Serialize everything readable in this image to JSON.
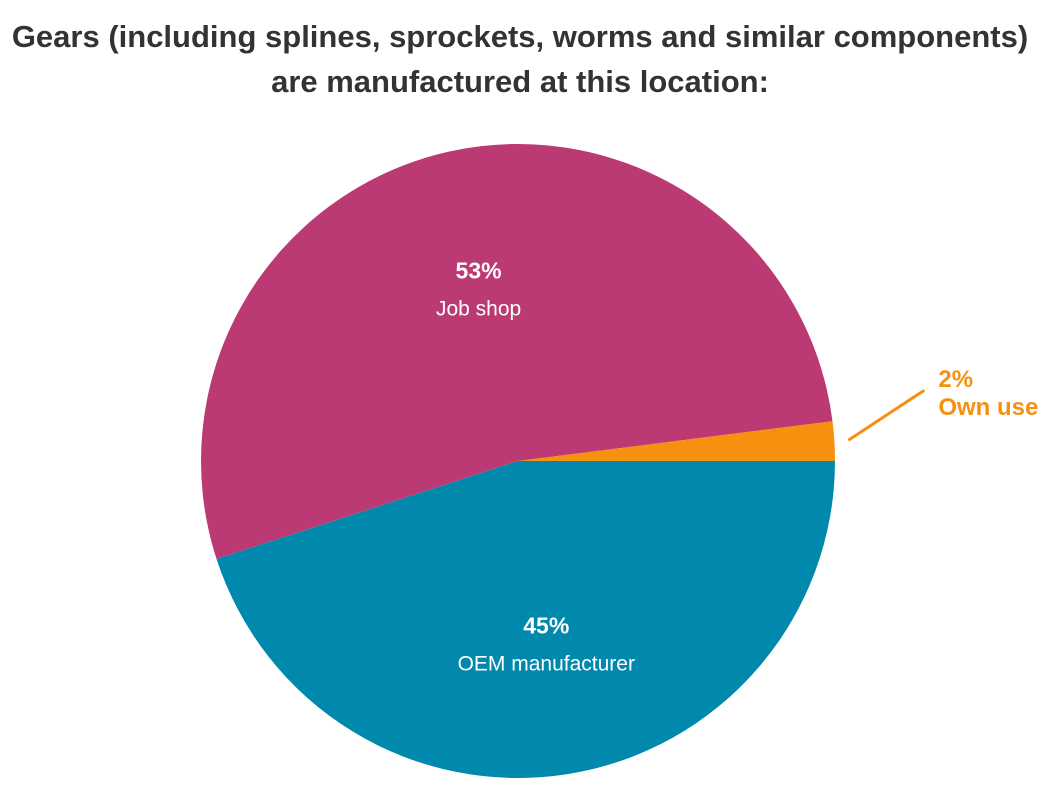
{
  "chart_data": {
    "type": "pie",
    "title_lines": [
      "Gears (including splines, sprockets, worms and similar components)",
      "are manufactured at this location:"
    ],
    "slices": [
      {
        "label": "Job shop",
        "value": 53,
        "percent_label": "53%",
        "color": "#bc3a73",
        "label_color": "#ffffff"
      },
      {
        "label": "OEM manufacturer",
        "value": 45,
        "percent_label": "45%",
        "color": "#0088ad",
        "label_color": "#ffffff"
      },
      {
        "label": "Own use",
        "value": 2,
        "percent_label": "2%",
        "color": "#f7900f",
        "label_color": "#f7900f"
      }
    ],
    "legend": "none",
    "grid": false
  }
}
